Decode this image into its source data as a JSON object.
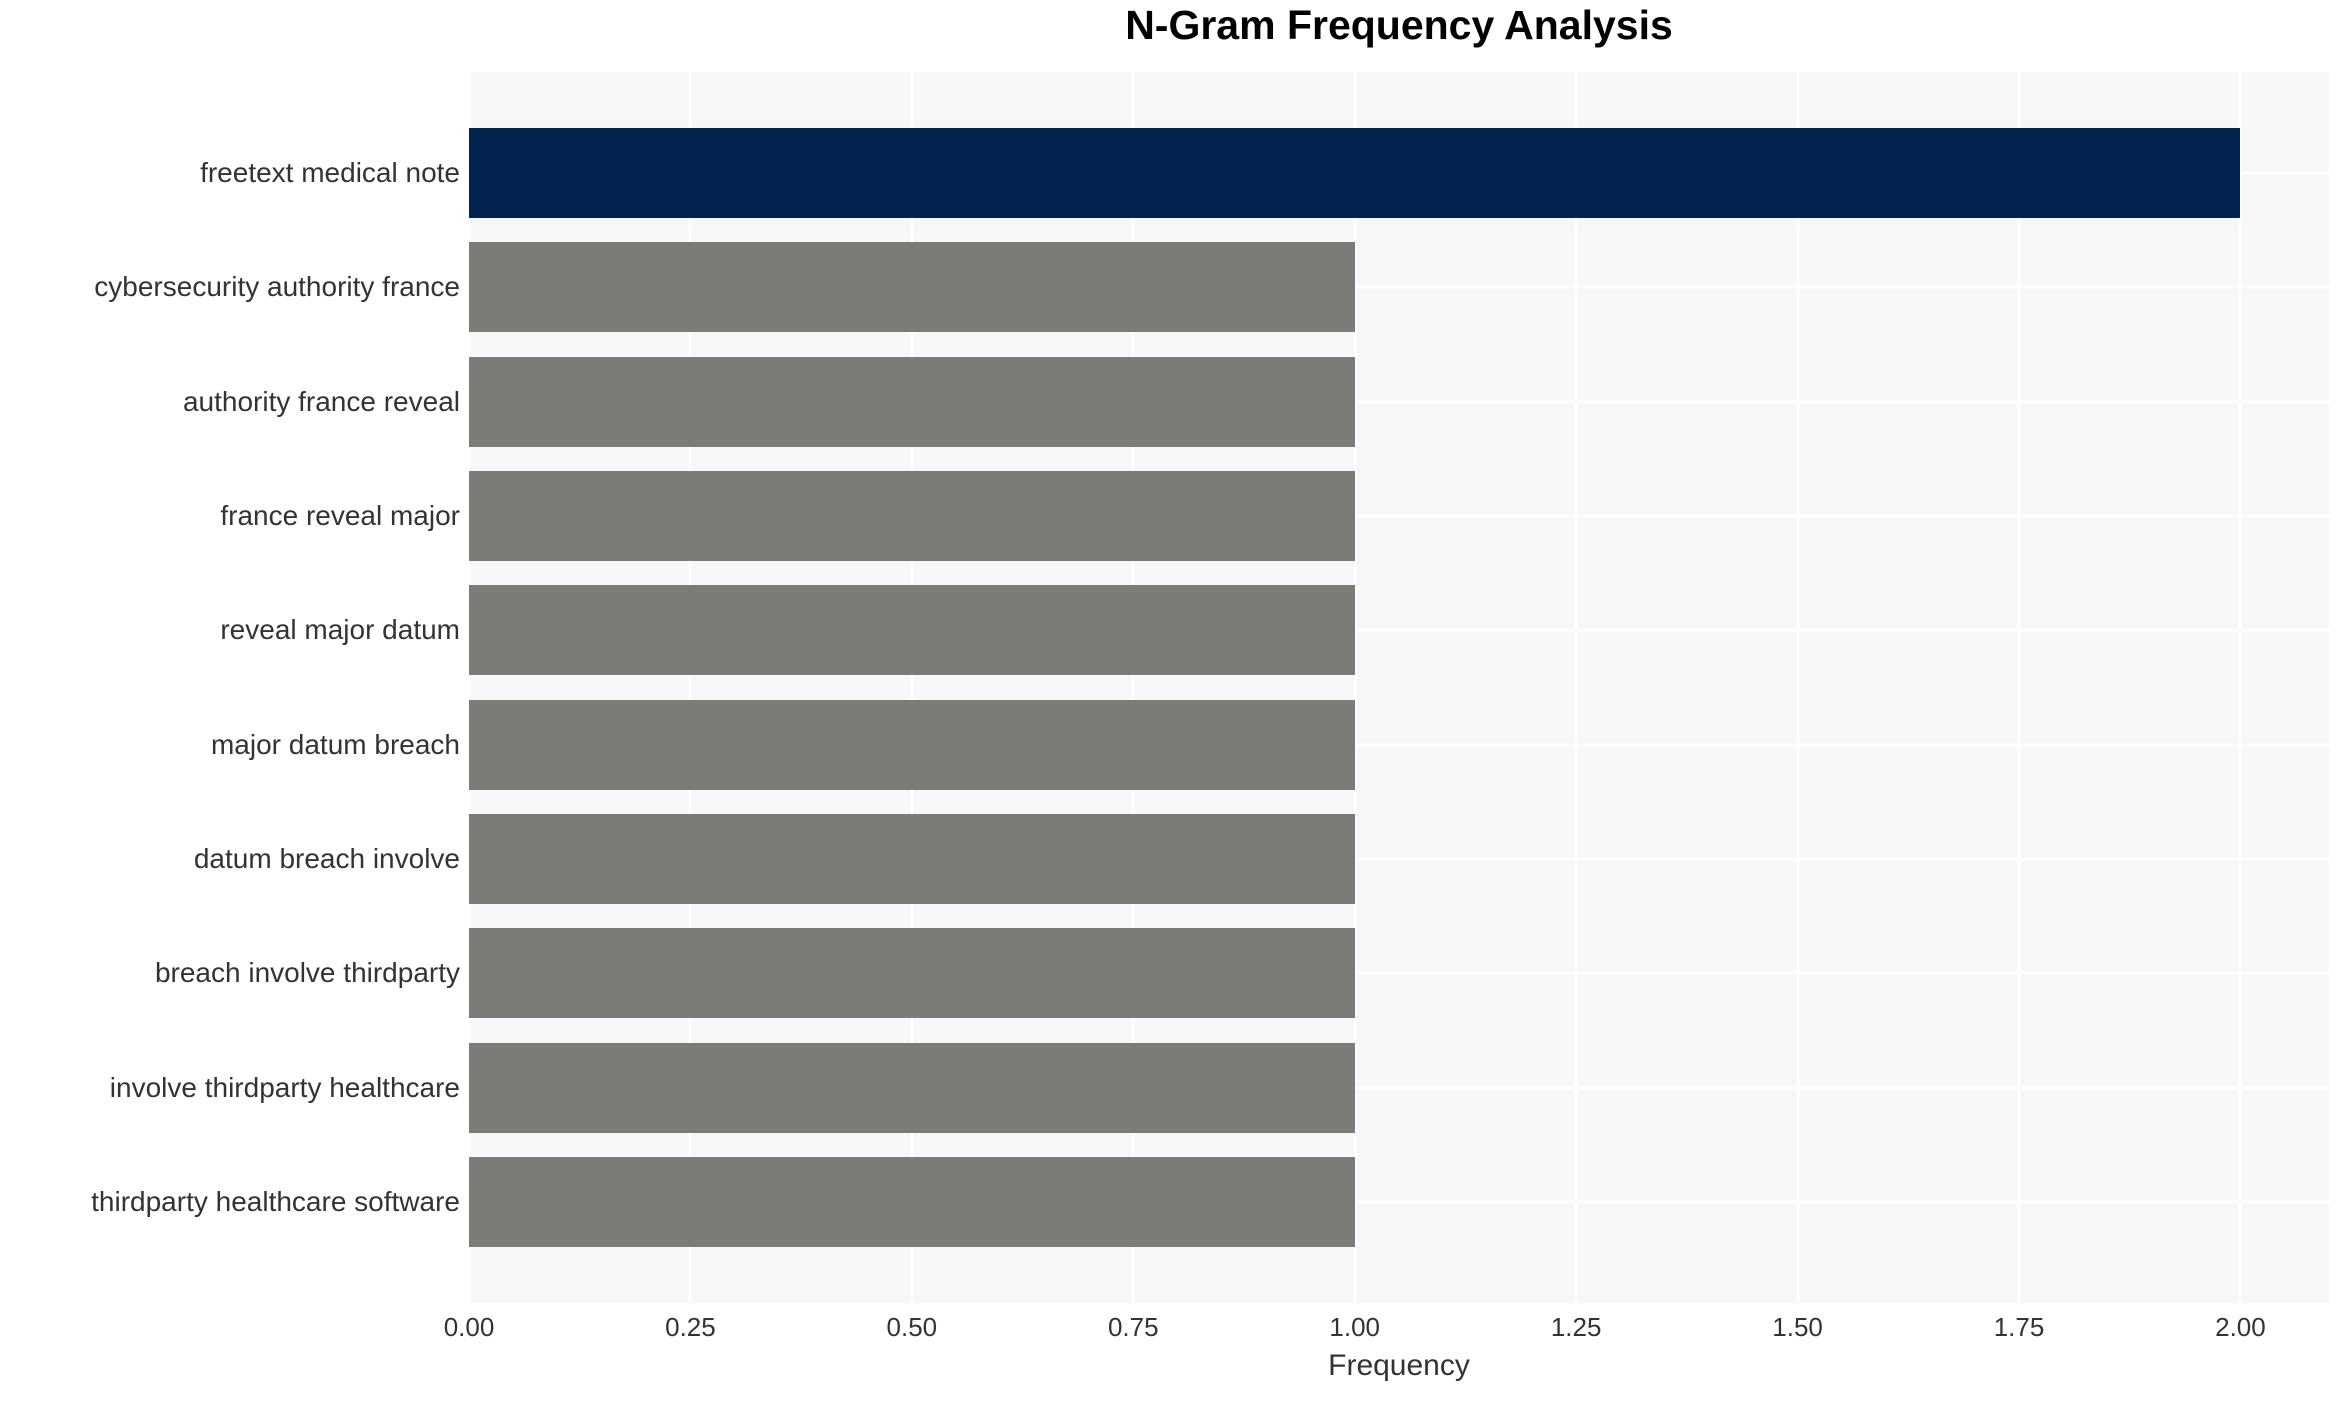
{
  "chart_data": {
    "type": "bar",
    "orientation": "horizontal",
    "title": "N-Gram Frequency Analysis",
    "xlabel": "Frequency",
    "ylabel": "",
    "categories": [
      "freetext medical note",
      "cybersecurity authority france",
      "authority france reveal",
      "france reveal major",
      "reveal major datum",
      "major datum breach",
      "datum breach involve",
      "breach involve thirdparty",
      "involve thirdparty healthcare",
      "thirdparty healthcare software"
    ],
    "values": [
      2,
      1,
      1,
      1,
      1,
      1,
      1,
      1,
      1,
      1
    ],
    "bar_colors": [
      "#03244e",
      "#7b7b77",
      "#7b7b77",
      "#7b7b77",
      "#7b7b77",
      "#7b7b77",
      "#7b7b77",
      "#7b7b77",
      "#7b7b77",
      "#7b7b77"
    ],
    "xlim": [
      0,
      2.1
    ],
    "xticks": [
      0,
      0.25,
      0.5,
      0.75,
      1.0,
      1.25,
      1.5,
      1.75,
      2.0
    ],
    "xtick_labels": [
      "0.00",
      "0.25",
      "0.50",
      "0.75",
      "1.00",
      "1.25",
      "1.50",
      "1.75",
      "2.00"
    ],
    "grid": true,
    "legend": false,
    "colors": {
      "highlight_bar": "#03244e",
      "default_bar": "#7b7b77",
      "plot_background": "#f7f7f7",
      "figure_background": "#ffffff",
      "gridline": "#ffffff",
      "tick_label_text": "#333333",
      "title_text": "#000000"
    }
  }
}
